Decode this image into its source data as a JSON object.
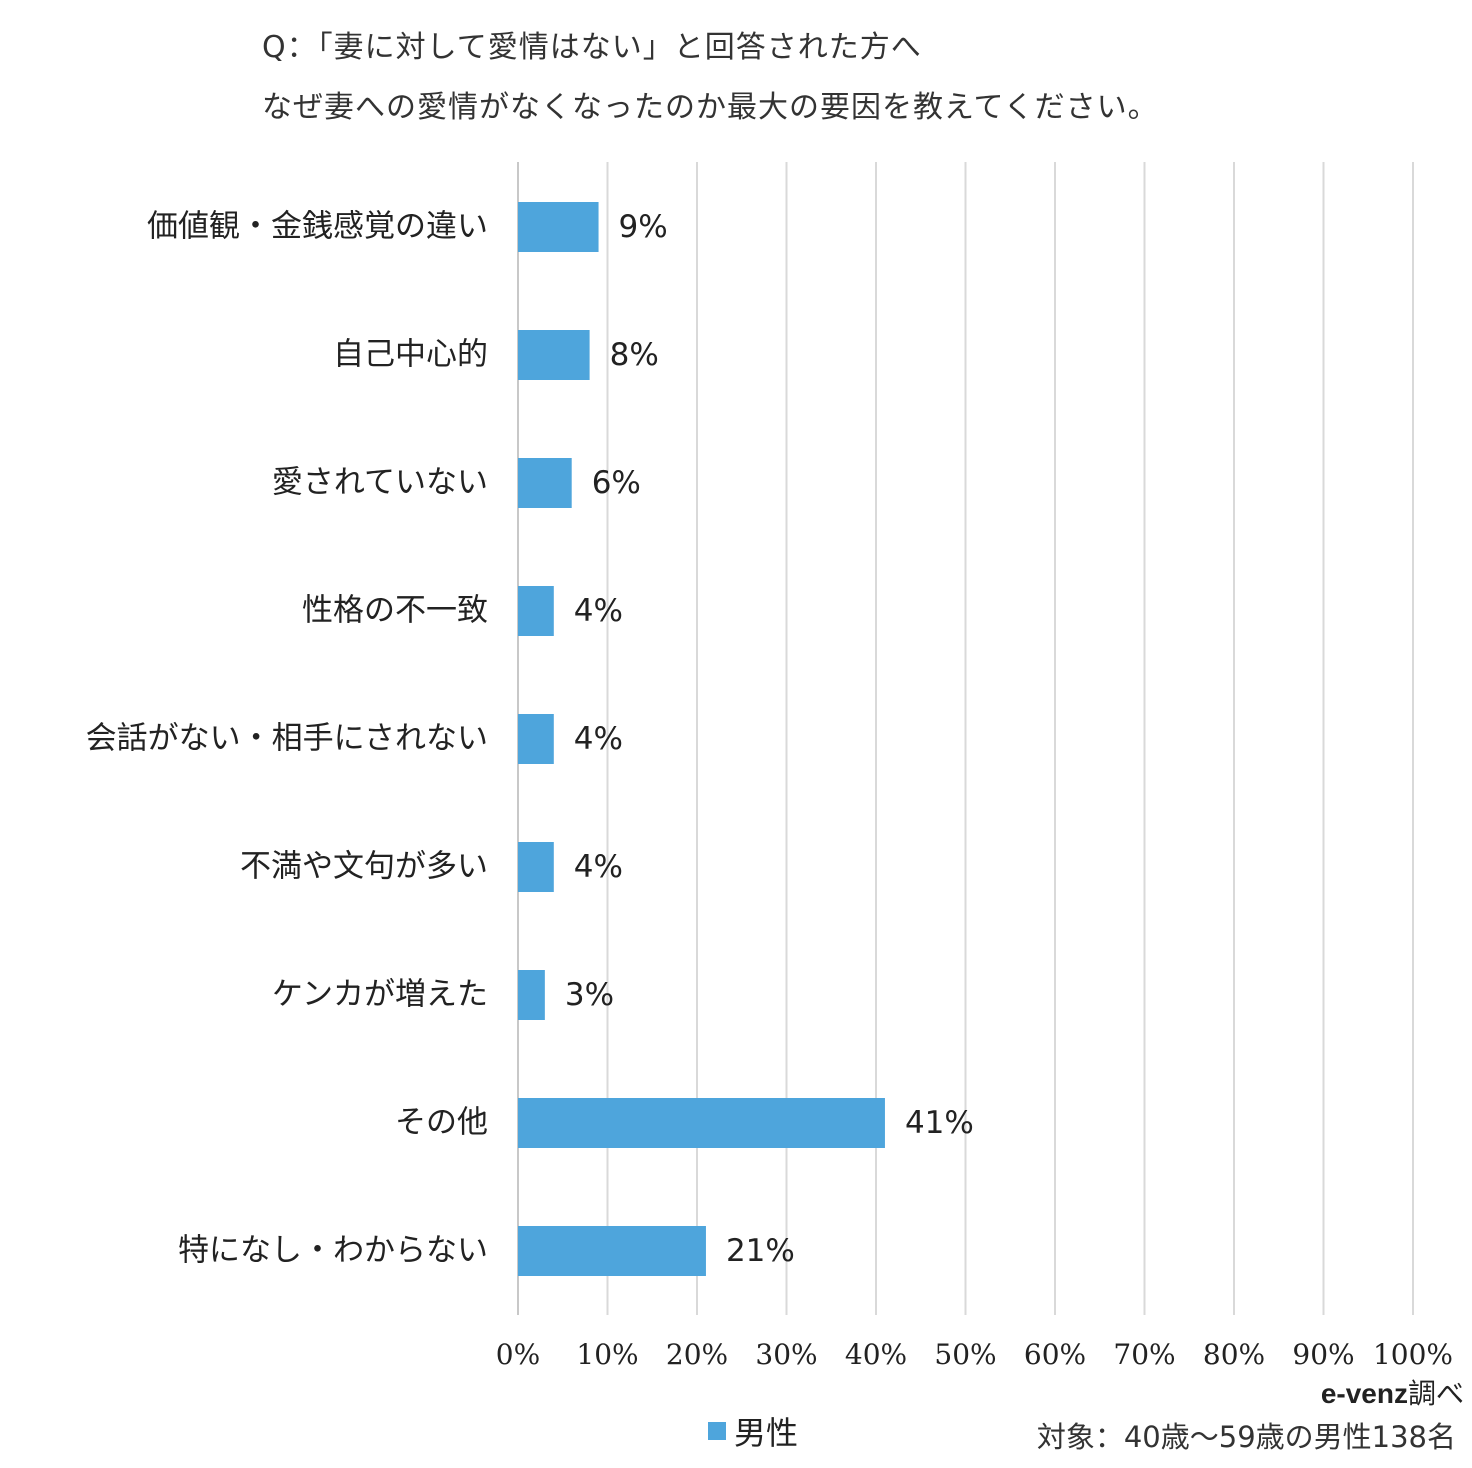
{
  "title_lines": [
    "Q：「妻に対して愛情はない」と回答された方へ",
    "なぜ妻への愛情がなくなったのか最大の要因を教えてください。"
  ],
  "chart_data": {
    "type": "bar",
    "orientation": "horizontal",
    "categories": [
      "価値観・金銭感覚の違い",
      "自己中心的",
      "愛されていない",
      "性格の不一致",
      "会話がない・相手にされない",
      "不満や文句が多い",
      "ケンカが増えた",
      "その他",
      "特になし・わからない"
    ],
    "series": [
      {
        "name": "男性",
        "values": [
          9,
          8,
          6,
          4,
          4,
          4,
          3,
          41,
          21
        ],
        "color": "#4ea5dc"
      }
    ],
    "data_labels": [
      "9%",
      "8%",
      "6%",
      "4%",
      "4%",
      "4%",
      "3%",
      "41%",
      "21%"
    ],
    "xlim": [
      0,
      100
    ],
    "x_ticks": [
      "0%",
      "10%",
      "20%",
      "30%",
      "40%",
      "50%",
      "60%",
      "70%",
      "80%",
      "90%",
      "100%"
    ],
    "grid": true,
    "legend_position": "bottom"
  },
  "source": {
    "brand": "e-venz",
    "suffix": "調べ"
  },
  "note": "対象：40歳～59歳の男性138名"
}
